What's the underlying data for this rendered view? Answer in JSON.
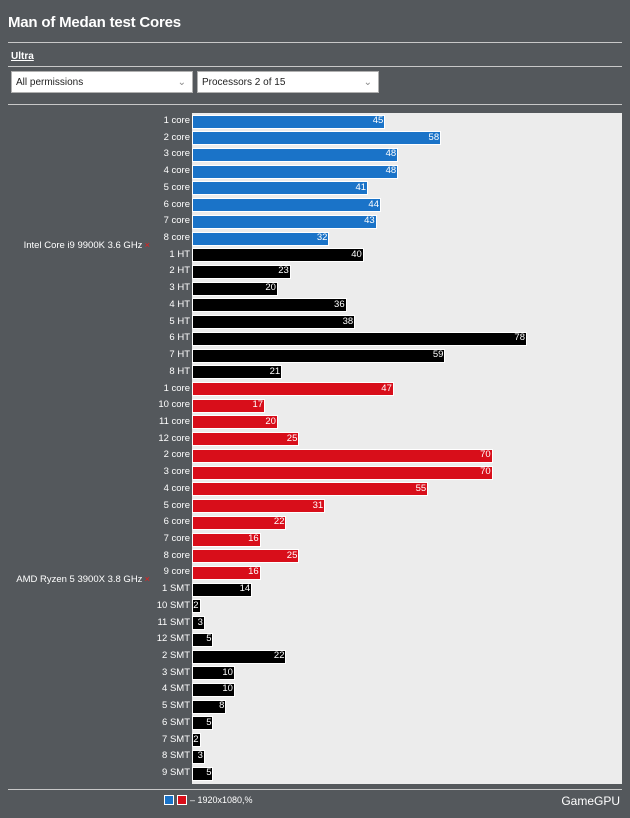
{
  "header": {
    "title": "Man of Medan test Cores"
  },
  "tabs": {
    "active_label": "Ultra"
  },
  "filters": {
    "permissions_value": "All permissions",
    "processors_value": "Processors 2 of 15"
  },
  "colors": {
    "intel": "#1a73c8",
    "amd": "#d80e1a",
    "threads": "#000000"
  },
  "legend": {
    "text": "– 1920x1080,%"
  },
  "brand": {
    "text": "GameGPU"
  },
  "chart_data": {
    "type": "bar",
    "orientation": "horizontal",
    "xlim": [
      0,
      80
    ],
    "groups": [
      {
        "name": "Intel Core i9 9900K 3.6 GHz",
        "color": "#1a73c8",
        "categories": [
          "1 core",
          "2 core",
          "3 core",
          "4 core",
          "5 core",
          "6 core",
          "7 core",
          "8 core",
          "1 HT",
          "2 HT",
          "3 HT",
          "4 HT",
          "5 HT",
          "6 HT",
          "7 HT",
          "8 HT"
        ],
        "values": [
          45,
          58,
          48,
          48,
          41,
          44,
          43,
          32,
          40,
          23,
          20,
          36,
          38,
          78,
          59,
          21
        ],
        "kinds": [
          "core",
          "core",
          "core",
          "core",
          "core",
          "core",
          "core",
          "core",
          "thread",
          "thread",
          "thread",
          "thread",
          "thread",
          "thread",
          "thread",
          "thread"
        ]
      },
      {
        "name": "AMD Ryzen 5 3900X 3.8 GHz",
        "color": "#d80e1a",
        "categories": [
          "1 core",
          "10 core",
          "11 core",
          "12 core",
          "2 core",
          "3 core",
          "4 core",
          "5 core",
          "6 core",
          "7 core",
          "8 core",
          "9 core",
          "1 SMT",
          "10 SMT",
          "11 SMT",
          "12 SMT",
          "2 SMT",
          "3 SMT",
          "4 SMT",
          "5 SMT",
          "6 SMT",
          "7 SMT",
          "8 SMT",
          "9 SMT"
        ],
        "values": [
          47,
          17,
          20,
          25,
          70,
          70,
          55,
          31,
          22,
          16,
          25,
          16,
          14,
          2,
          3,
          5,
          22,
          10,
          10,
          8,
          5,
          2,
          3,
          5
        ],
        "kinds": [
          "core",
          "core",
          "core",
          "core",
          "core",
          "core",
          "core",
          "core",
          "core",
          "core",
          "core",
          "core",
          "thread",
          "thread",
          "thread",
          "thread",
          "thread",
          "thread",
          "thread",
          "thread",
          "thread",
          "thread",
          "thread",
          "thread"
        ]
      }
    ]
  }
}
